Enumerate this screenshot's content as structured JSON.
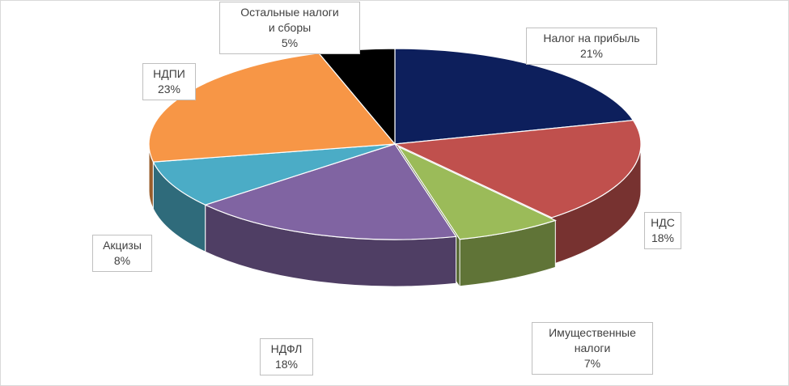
{
  "chart_data": {
    "type": "pie",
    "title": "",
    "style": "3d-exploded",
    "slices": [
      {
        "label": "Налог на прибыль",
        "value": 21,
        "pct": "21%",
        "color": "#0d1f5c"
      },
      {
        "label": "НДС",
        "value": 18,
        "pct": "18%",
        "color": "#c0504d"
      },
      {
        "label": "Имущественные налоги",
        "value": 7,
        "pct": "7%",
        "color": "#9bbb59"
      },
      {
        "label": "НДФЛ",
        "value": 18,
        "pct": "18%",
        "color": "#8064a2"
      },
      {
        "label": "Акцизы",
        "value": 8,
        "pct": "8%",
        "color": "#4bacc6"
      },
      {
        "label": "НДПИ",
        "value": 23,
        "pct": "23%",
        "color": "#f79646"
      },
      {
        "label": "Остальные налоги и сборы",
        "value": 5,
        "pct": "5%",
        "color": "#000000"
      }
    ]
  }
}
